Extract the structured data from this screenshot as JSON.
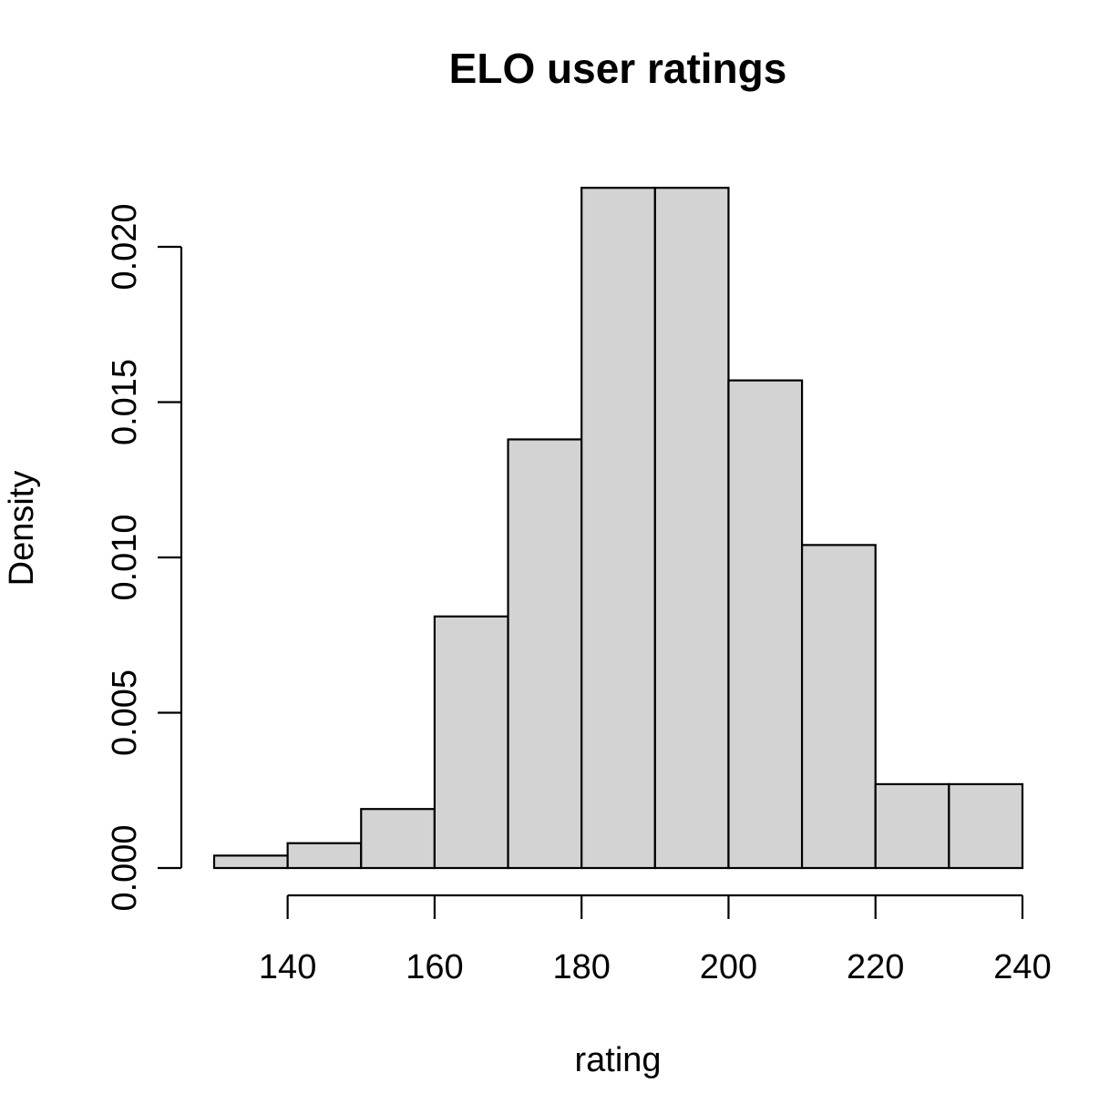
{
  "chart_data": {
    "type": "bar",
    "title": "ELO user ratings",
    "xlabel": "rating",
    "ylabel": "Density",
    "bins": [
      {
        "start": 130,
        "end": 140,
        "density": 0.0004
      },
      {
        "start": 140,
        "end": 150,
        "density": 0.0008
      },
      {
        "start": 150,
        "end": 160,
        "density": 0.0019
      },
      {
        "start": 160,
        "end": 170,
        "density": 0.0081
      },
      {
        "start": 170,
        "end": 180,
        "density": 0.0138
      },
      {
        "start": 180,
        "end": 190,
        "density": 0.0219
      },
      {
        "start": 190,
        "end": 200,
        "density": 0.0219
      },
      {
        "start": 200,
        "end": 210,
        "density": 0.0157
      },
      {
        "start": 210,
        "end": 220,
        "density": 0.0104
      },
      {
        "start": 220,
        "end": 230,
        "density": 0.0027
      },
      {
        "start": 230,
        "end": 240,
        "density": 0.0027
      }
    ],
    "xticks": [
      140,
      160,
      180,
      200,
      220,
      240
    ],
    "xtick_labels": [
      "140",
      "160",
      "180",
      "200",
      "220",
      "240"
    ],
    "yticks": [
      0.0,
      0.005,
      0.01,
      0.015,
      0.02
    ],
    "ytick_labels": [
      "0.000",
      "0.005",
      "0.010",
      "0.015",
      "0.020"
    ],
    "xlim": [
      130,
      240
    ],
    "ylim": [
      0,
      0.022
    ],
    "grid": false,
    "colors": {
      "bar_fill": "#d3d3d3",
      "bar_stroke": "#000000"
    }
  }
}
